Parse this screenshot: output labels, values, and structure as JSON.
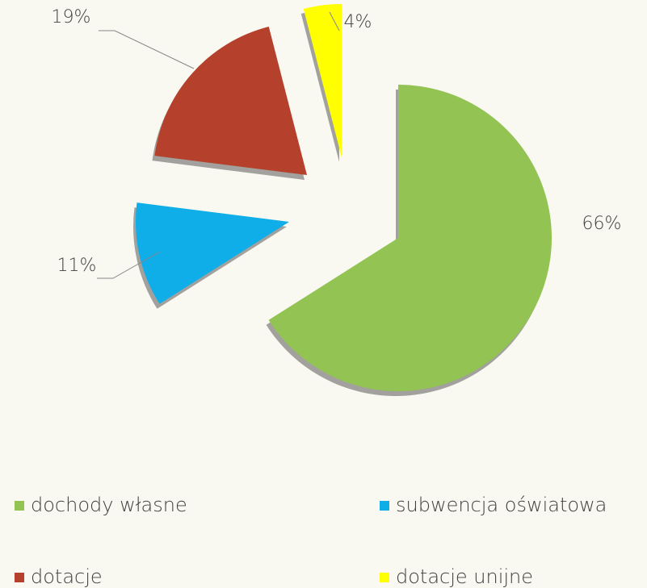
{
  "chart_data": {
    "type": "pie",
    "categories": [
      "dochody własne",
      "subwencja oświatowa",
      "dotacje",
      "dotacje unijne"
    ],
    "values": [
      66,
      11,
      19,
      4
    ],
    "value_labels": [
      "66%",
      "11%",
      "19%",
      "4%"
    ],
    "colors": [
      "#92c353",
      "#10aee8",
      "#b5412c",
      "#ffff00"
    ],
    "legend": "bottom"
  }
}
